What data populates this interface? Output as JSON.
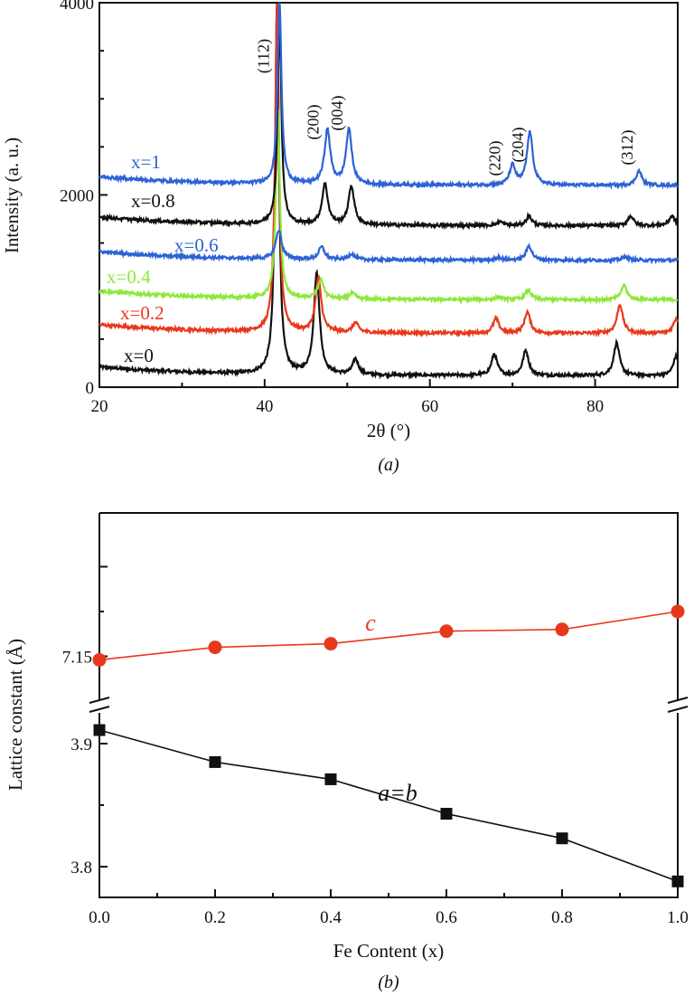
{
  "chart_data": [
    {
      "type": "line",
      "panel_label": "(a)",
      "xlabel": "2θ (°)",
      "ylabel": "Intensity (a. u.)",
      "xlim": [
        20,
        90
      ],
      "ylim": [
        0,
        4000
      ],
      "xticks": [
        "20",
        "40",
        "60",
        "80"
      ],
      "yticks": [
        "0",
        "2000",
        "4000"
      ],
      "peak_labels": [
        {
          "label": "(112)",
          "x": 41.5
        },
        {
          "label": "(200)",
          "x": 47.5
        },
        {
          "label": "(004)",
          "x": 50.4
        },
        {
          "label": "(220)",
          "x": 69.5
        },
        {
          "label": "(204)",
          "x": 72.3
        },
        {
          "label": "(312)",
          "x": 85.5
        }
      ],
      "series": [
        {
          "name": "x=0",
          "color": "#111111",
          "baseline": 120,
          "peaks": [
            [
              41.5,
              3900
            ],
            [
              46.3,
              1050
            ],
            [
              51.0,
              160
            ],
            [
              67.8,
              220
            ],
            [
              71.6,
              260
            ],
            [
              82.6,
              340
            ],
            [
              89.8,
              200
            ]
          ]
        },
        {
          "name": "x=0.2",
          "color": "#e8381c",
          "baseline": 560,
          "peaks": [
            [
              41.5,
              3400
            ],
            [
              46.5,
              560
            ],
            [
              51.0,
              100
            ],
            [
              68.0,
              150
            ],
            [
              71.8,
              220
            ],
            [
              83.0,
              300
            ],
            [
              89.8,
              150
            ]
          ]
        },
        {
          "name": "x=0.4",
          "color": "#8ee83a",
          "baseline": 910,
          "peaks": [
            [
              41.6,
              2000
            ],
            [
              46.8,
              200
            ],
            [
              50.6,
              60
            ],
            [
              68.3,
              25
            ],
            [
              71.9,
              100
            ],
            [
              83.5,
              150
            ]
          ]
        },
        {
          "name": "x=0.6",
          "color": "#2c63d6",
          "baseline": 1320,
          "peaks": [
            [
              41.7,
              300
            ],
            [
              46.9,
              130
            ],
            [
              50.5,
              60
            ],
            [
              68.3,
              30
            ],
            [
              72.0,
              150
            ],
            [
              83.7,
              40
            ]
          ]
        },
        {
          "name": "x=0.8",
          "color": "#111111",
          "baseline": 1680,
          "peaks": [
            [
              41.8,
              2100
            ],
            [
              47.3,
              420
            ],
            [
              50.5,
              400
            ],
            [
              68.5,
              40
            ],
            [
              72.0,
              100
            ],
            [
              84.3,
              100
            ],
            [
              89.3,
              100
            ]
          ]
        },
        {
          "name": "x=1",
          "color": "#2c63d6",
          "baseline": 2100,
          "peaks": [
            [
              41.8,
              1900
            ],
            [
              47.6,
              560
            ],
            [
              50.2,
              570
            ],
            [
              70.0,
              200
            ],
            [
              72.1,
              550
            ],
            [
              85.3,
              150
            ]
          ]
        }
      ]
    },
    {
      "type": "line",
      "panel_label": "(b)",
      "xlabel": "Fe Content (x)",
      "ylabel": "Lattice constant (Å)",
      "xlim": [
        0,
        1
      ],
      "xticks": [
        "0.0",
        "0.2",
        "0.4",
        "0.6",
        "0.8",
        "1.0"
      ],
      "x": [
        0,
        0.2,
        0.4,
        0.6,
        0.8,
        1.0
      ],
      "broken_y_axis": true,
      "upper_segment": {
        "ylim": [
          7.125,
          7.23
        ],
        "yticks": [
          "7.15"
        ]
      },
      "lower_segment": {
        "ylim": [
          3.775,
          3.925
        ],
        "yticks": [
          "3.8",
          "3.9"
        ]
      },
      "series": [
        {
          "name": "c",
          "color": "#e8381c",
          "marker": "circle",
          "values": [
            7.148,
            7.155,
            7.157,
            7.164,
            7.165,
            7.175
          ]
        },
        {
          "name": "a=b",
          "color": "#111111",
          "marker": "square",
          "values": [
            3.911,
            3.885,
            3.871,
            3.843,
            3.823,
            3.788
          ]
        }
      ]
    }
  ]
}
